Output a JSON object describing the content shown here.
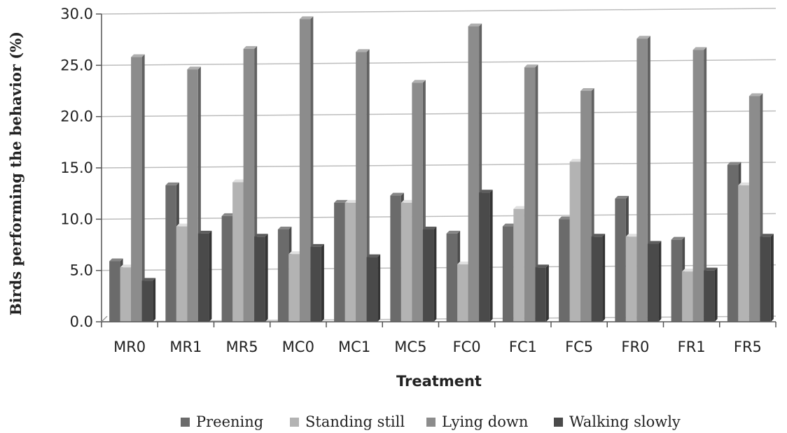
{
  "chart_data": {
    "type": "bar",
    "title": "",
    "xlabel": "Treatment",
    "ylabel": "Birds performing the behavior (%)",
    "ylim": [
      0,
      30
    ],
    "yticks": [
      "0.0",
      "5.0",
      "10.0",
      "15.0",
      "20.0",
      "25.0",
      "30.0"
    ],
    "grid": true,
    "legend_position": "bottom",
    "categories": [
      "MR0",
      "MR1",
      "MR5",
      "MC0",
      "MC1",
      "MC5",
      "FC0",
      "FC1",
      "FC5",
      "FR0",
      "FR1",
      "FR5"
    ],
    "series": [
      {
        "name": "Preening",
        "color": "#6b6b6b",
        "values": [
          5.9,
          13.3,
          10.3,
          9.0,
          11.6,
          12.3,
          8.6,
          9.3,
          10.0,
          12.0,
          8.0,
          15.3
        ]
      },
      {
        "name": "Standing still",
        "color": "#b3b3b3",
        "values": [
          5.3,
          9.3,
          13.6,
          6.6,
          11.6,
          11.6,
          5.6,
          11.0,
          15.6,
          8.3,
          4.9,
          13.3
        ]
      },
      {
        "name": "Lying down",
        "color": "#8c8c8c",
        "values": [
          25.8,
          24.6,
          26.6,
          29.5,
          26.3,
          23.3,
          28.8,
          24.8,
          22.5,
          27.6,
          26.5,
          22.0
        ]
      },
      {
        "name": "Walking slowly",
        "color": "#4a4a4a",
        "values": [
          4.0,
          8.6,
          8.3,
          7.3,
          6.3,
          9.0,
          12.6,
          5.3,
          8.3,
          7.6,
          5.0,
          8.3
        ]
      }
    ]
  }
}
